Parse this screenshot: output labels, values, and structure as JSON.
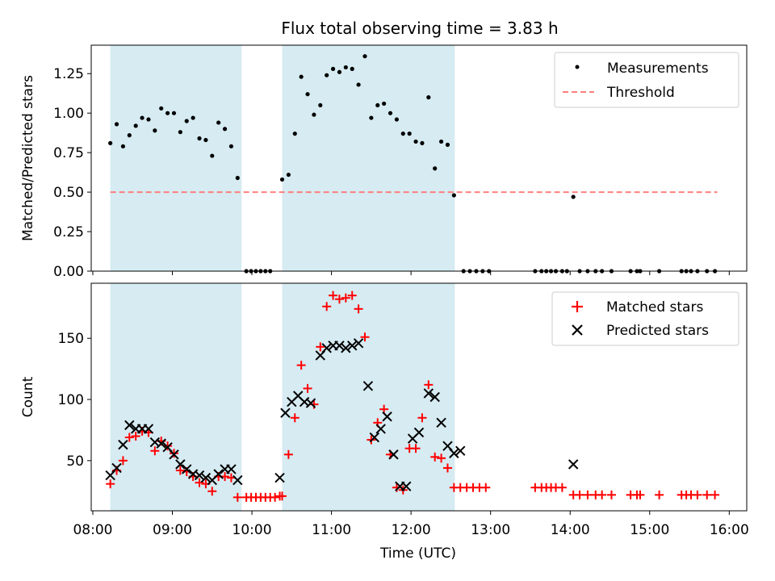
{
  "title": "Flux total observing time = 3.83 h",
  "colors": {
    "shade": "#add8e6",
    "measurement": "#000000",
    "threshold": "#ff7f7f",
    "matched": "#ff0000",
    "predicted": "#000000"
  },
  "chart_data": [
    {
      "type": "scatter",
      "name": "ratio",
      "ylabel": "Matched/Predicted stars",
      "xlabel": "",
      "xlim": [
        7.98,
        16.22
      ],
      "ylim": [
        0,
        1.43
      ],
      "yticks": [
        0,
        0.25,
        0.5,
        0.75,
        1.0,
        1.25
      ],
      "ytick_labels": [
        "0.00",
        "0.25",
        "0.50",
        "0.75",
        "1.00",
        "1.25"
      ],
      "shaded_intervals": [
        [
          8.22,
          9.87
        ],
        [
          10.38,
          12.55
        ]
      ],
      "threshold": {
        "label": "Threshold",
        "value": 0.5,
        "x_range": [
          8.22,
          15.85
        ]
      },
      "legend": [
        "Measurements",
        "Threshold"
      ],
      "legend_position": "top-right",
      "series": [
        {
          "name": "Measurements",
          "points": [
            [
              8.22,
              0.81
            ],
            [
              8.3,
              0.93
            ],
            [
              8.38,
              0.79
            ],
            [
              8.46,
              0.86
            ],
            [
              8.54,
              0.92
            ],
            [
              8.62,
              0.97
            ],
            [
              8.7,
              0.96
            ],
            [
              8.78,
              0.89
            ],
            [
              8.86,
              1.03
            ],
            [
              8.94,
              1.0
            ],
            [
              9.02,
              1.0
            ],
            [
              9.1,
              0.88
            ],
            [
              9.18,
              0.95
            ],
            [
              9.26,
              0.97
            ],
            [
              9.34,
              0.84
            ],
            [
              9.42,
              0.83
            ],
            [
              9.5,
              0.73
            ],
            [
              9.58,
              0.94
            ],
            [
              9.66,
              0.9
            ],
            [
              9.74,
              0.79
            ],
            [
              9.82,
              0.59
            ],
            [
              9.93,
              0
            ],
            [
              9.99,
              0
            ],
            [
              10.05,
              0
            ],
            [
              10.11,
              0
            ],
            [
              10.17,
              0
            ],
            [
              10.23,
              0
            ],
            [
              10.38,
              0.58
            ],
            [
              10.46,
              0.61
            ],
            [
              10.54,
              0.87
            ],
            [
              10.62,
              1.23
            ],
            [
              10.7,
              1.12
            ],
            [
              10.78,
              0.99
            ],
            [
              10.86,
              1.05
            ],
            [
              10.94,
              1.24
            ],
            [
              11.02,
              1.28
            ],
            [
              11.1,
              1.26
            ],
            [
              11.18,
              1.29
            ],
            [
              11.26,
              1.28
            ],
            [
              11.34,
              1.18
            ],
            [
              11.42,
              1.36
            ],
            [
              11.5,
              0.97
            ],
            [
              11.58,
              1.05
            ],
            [
              11.66,
              1.06
            ],
            [
              11.74,
              1.0
            ],
            [
              11.82,
              0.96
            ],
            [
              11.9,
              0.87
            ],
            [
              11.98,
              0.87
            ],
            [
              12.06,
              0.82
            ],
            [
              12.14,
              0.81
            ],
            [
              12.22,
              1.1
            ],
            [
              12.3,
              0.65
            ],
            [
              12.38,
              0.82
            ],
            [
              12.46,
              0.8
            ],
            [
              12.54,
              0.48
            ],
            [
              12.66,
              0
            ],
            [
              12.74,
              0
            ],
            [
              12.82,
              0
            ],
            [
              12.9,
              0
            ],
            [
              12.98,
              0
            ],
            [
              13.56,
              0
            ],
            [
              13.64,
              0
            ],
            [
              13.7,
              0
            ],
            [
              13.76,
              0
            ],
            [
              13.82,
              0
            ],
            [
              13.9,
              0
            ],
            [
              13.96,
              0
            ],
            [
              14.04,
              0.47
            ],
            [
              14.12,
              0
            ],
            [
              14.22,
              0
            ],
            [
              14.32,
              0
            ],
            [
              14.4,
              0
            ],
            [
              14.52,
              0
            ],
            [
              14.76,
              0
            ],
            [
              14.84,
              0
            ],
            [
              14.88,
              0
            ],
            [
              15.12,
              0
            ],
            [
              15.4,
              0
            ],
            [
              15.46,
              0
            ],
            [
              15.52,
              0
            ],
            [
              15.6,
              0
            ],
            [
              15.72,
              0
            ],
            [
              15.82,
              0
            ]
          ]
        }
      ]
    },
    {
      "type": "scatter",
      "name": "count",
      "ylabel": "Count",
      "xlabel": "Time (UTC)",
      "xlim": [
        7.98,
        16.22
      ],
      "ylim": [
        9,
        195
      ],
      "yticks": [
        50,
        100,
        150
      ],
      "ytick_labels": [
        "50",
        "100",
        "150"
      ],
      "xticks": [
        8,
        9,
        10,
        11,
        12,
        13,
        14,
        15,
        16
      ],
      "xtick_labels": [
        "08:00",
        "09:00",
        "10:00",
        "11:00",
        "12:00",
        "13:00",
        "14:00",
        "15:00",
        "16:00"
      ],
      "shaded_intervals": [
        [
          8.22,
          9.87
        ],
        [
          10.38,
          12.55
        ]
      ],
      "legend": [
        "Matched stars",
        "Predicted stars"
      ],
      "legend_position": "top-right",
      "series": [
        {
          "name": "Matched stars",
          "points": [
            [
              8.22,
              31
            ],
            [
              8.3,
              42
            ],
            [
              8.38,
              50
            ],
            [
              8.46,
              69
            ],
            [
              8.54,
              70
            ],
            [
              8.62,
              74
            ],
            [
              8.7,
              73
            ],
            [
              8.78,
              58
            ],
            [
              8.86,
              66
            ],
            [
              8.94,
              62
            ],
            [
              9.02,
              56
            ],
            [
              9.1,
              42
            ],
            [
              9.18,
              41
            ],
            [
              9.26,
              37
            ],
            [
              9.34,
              32
            ],
            [
              9.42,
              31
            ],
            [
              9.5,
              25
            ],
            [
              9.58,
              37
            ],
            [
              9.66,
              37
            ],
            [
              9.74,
              36
            ],
            [
              9.82,
              20
            ],
            [
              9.93,
              20
            ],
            [
              9.99,
              20
            ],
            [
              10.05,
              20
            ],
            [
              10.11,
              20
            ],
            [
              10.17,
              20
            ],
            [
              10.23,
              20
            ],
            [
              10.29,
              20
            ],
            [
              10.35,
              21
            ],
            [
              10.38,
              21
            ],
            [
              10.46,
              55
            ],
            [
              10.54,
              85
            ],
            [
              10.62,
              128
            ],
            [
              10.7,
              109
            ],
            [
              10.78,
              96
            ],
            [
              10.86,
              143
            ],
            [
              10.94,
              176
            ],
            [
              11.02,
              185
            ],
            [
              11.1,
              182
            ],
            [
              11.18,
              183
            ],
            [
              11.26,
              185
            ],
            [
              11.34,
              174
            ],
            [
              11.42,
              151
            ],
            [
              11.5,
              67
            ],
            [
              11.58,
              81
            ],
            [
              11.66,
              92
            ],
            [
              11.74,
              55
            ],
            [
              11.82,
              28
            ],
            [
              11.9,
              26
            ],
            [
              11.98,
              60
            ],
            [
              12.06,
              60
            ],
            [
              12.14,
              85
            ],
            [
              12.22,
              112
            ],
            [
              12.3,
              53
            ],
            [
              12.38,
              52
            ],
            [
              12.46,
              44
            ],
            [
              12.54,
              28
            ],
            [
              12.62,
              28
            ],
            [
              12.7,
              28
            ],
            [
              12.78,
              28
            ],
            [
              12.86,
              28
            ],
            [
              12.94,
              28
            ],
            [
              13.56,
              28
            ],
            [
              13.64,
              28
            ],
            [
              13.7,
              28
            ],
            [
              13.76,
              28
            ],
            [
              13.82,
              28
            ],
            [
              13.9,
              28
            ],
            [
              14.04,
              22
            ],
            [
              14.12,
              22
            ],
            [
              14.22,
              22
            ],
            [
              14.32,
              22
            ],
            [
              14.4,
              22
            ],
            [
              14.52,
              22
            ],
            [
              14.76,
              22
            ],
            [
              14.84,
              22
            ],
            [
              14.88,
              22
            ],
            [
              15.12,
              22
            ],
            [
              15.4,
              22
            ],
            [
              15.46,
              22
            ],
            [
              15.52,
              22
            ],
            [
              15.6,
              22
            ],
            [
              15.72,
              22
            ],
            [
              15.82,
              22
            ]
          ]
        },
        {
          "name": "Predicted stars",
          "points": [
            [
              8.22,
              38
            ],
            [
              8.3,
              44
            ],
            [
              8.38,
              63
            ],
            [
              8.46,
              79
            ],
            [
              8.54,
              76
            ],
            [
              8.62,
              76
            ],
            [
              8.7,
              76
            ],
            [
              8.78,
              65
            ],
            [
              8.86,
              64
            ],
            [
              8.94,
              61
            ],
            [
              9.02,
              55
            ],
            [
              9.1,
              47
            ],
            [
              9.18,
              43
            ],
            [
              9.26,
              39
            ],
            [
              9.34,
              38
            ],
            [
              9.42,
              36
            ],
            [
              9.5,
              34
            ],
            [
              9.58,
              39
            ],
            [
              9.66,
              43
            ],
            [
              9.74,
              43
            ],
            [
              9.82,
              34
            ],
            [
              10.35,
              36
            ],
            [
              10.42,
              89
            ],
            [
              10.5,
              98
            ],
            [
              10.58,
              103
            ],
            [
              10.66,
              98
            ],
            [
              10.74,
              97
            ],
            [
              10.86,
              136
            ],
            [
              10.94,
              142
            ],
            [
              11.02,
              144
            ],
            [
              11.1,
              144
            ],
            [
              11.18,
              142
            ],
            [
              11.26,
              144
            ],
            [
              11.34,
              146
            ],
            [
              11.46,
              111
            ],
            [
              11.54,
              69
            ],
            [
              11.62,
              76
            ],
            [
              11.7,
              86
            ],
            [
              11.78,
              55
            ],
            [
              11.86,
              29
            ],
            [
              11.94,
              29
            ],
            [
              12.02,
              68
            ],
            [
              12.1,
              73
            ],
            [
              12.22,
              105
            ],
            [
              12.3,
              102
            ],
            [
              12.38,
              81
            ],
            [
              12.46,
              62
            ],
            [
              12.54,
              56
            ],
            [
              12.62,
              58
            ],
            [
              14.04,
              47
            ]
          ]
        }
      ]
    }
  ]
}
